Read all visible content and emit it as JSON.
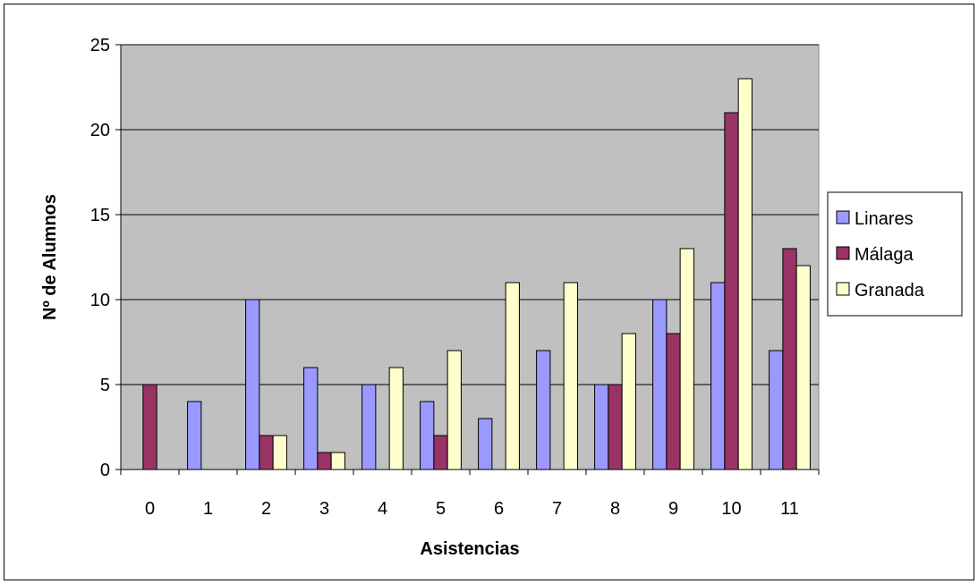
{
  "chart_data": {
    "type": "bar",
    "title": "",
    "xlabel": "Asistencias",
    "ylabel": "Nº de Alumnos",
    "categories": [
      "0",
      "1",
      "2",
      "3",
      "4",
      "5",
      "6",
      "7",
      "8",
      "9",
      "10",
      "11"
    ],
    "series": [
      {
        "name": "Linares",
        "color": "#9999FF",
        "values": [
          0,
          4,
          10,
          6,
          5,
          4,
          3,
          7,
          5,
          10,
          11,
          7
        ]
      },
      {
        "name": "Málaga",
        "color": "#993366",
        "values": [
          5,
          0,
          2,
          1,
          0,
          2,
          0,
          0,
          5,
          8,
          21,
          13
        ]
      },
      {
        "name": "Granada",
        "color": "#FFFFCC",
        "values": [
          0,
          0,
          2,
          1,
          6,
          7,
          11,
          11,
          8,
          13,
          23,
          12
        ]
      }
    ],
    "ylim": [
      0,
      25
    ],
    "yticks": [
      0,
      5,
      10,
      15,
      20,
      25
    ],
    "grid": true,
    "plot_background": "#C0C0C0",
    "legend_position": "right"
  }
}
